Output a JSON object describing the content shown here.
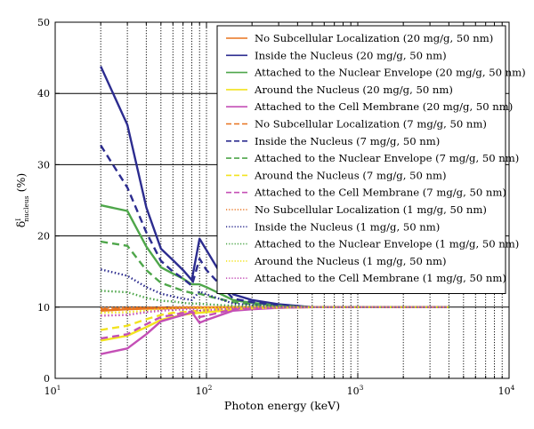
{
  "chart_data": {
    "type": "line",
    "xlabel": "Photon energy (keV)",
    "ylabel_base": "δ",
    "ylabel_sup": "I",
    "ylabel_sub": "nucleus",
    "ylabel_unit": " (%)",
    "xscale": "log",
    "xlim": [
      10,
      10000
    ],
    "ylim": [
      0,
      50
    ],
    "grid": "x-dotted-minor, y-solid-major",
    "legend_position": "top-right",
    "x_ticks": [
      {
        "base": "10",
        "exp": "1",
        "value": 10
      },
      {
        "base": "10",
        "exp": "2",
        "value": 100
      },
      {
        "base": "10",
        "exp": "3",
        "value": 1000
      },
      {
        "base": "10",
        "exp": "4",
        "value": 10000
      }
    ],
    "y_ticks": [
      0,
      10,
      20,
      30,
      40,
      50
    ],
    "x": [
      20,
      30,
      40,
      50,
      60,
      70,
      80,
      90,
      100,
      150,
      200,
      300,
      500,
      1000,
      2000,
      4000
    ],
    "series": [
      {
        "name": "No Subcellular Localization (20 mg/g, 50 nm)",
        "color": "#e8731f",
        "dash": "solid",
        "values": [
          9.5,
          9.7,
          9.8,
          9.8,
          9.85,
          9.9,
          9.9,
          9.9,
          9.95,
          10.0,
          10.0,
          10.0,
          10.0,
          10.0,
          10.0,
          10.0
        ]
      },
      {
        "name": "Inside the Nucleus (20 mg/g, 50 nm)",
        "color": "#2c2c8f",
        "dash": "solid",
        "values": [
          43.8,
          35.6,
          24.0,
          18.2,
          16.6,
          15.2,
          13.8,
          19.6,
          18.0,
          11.8,
          11.0,
          10.4,
          10.0,
          10.0,
          10.0,
          10.0
        ]
      },
      {
        "name": "Attached to the Nuclear Envelope (20 mg/g, 50 nm)",
        "color": "#4ea64a",
        "dash": "solid",
        "values": [
          24.3,
          23.5,
          18.5,
          15.6,
          14.7,
          14.0,
          13.2,
          13.2,
          12.8,
          11.0,
          10.6,
          10.2,
          10.0,
          10.0,
          10.0,
          10.0
        ]
      },
      {
        "name": "Around the Nucleus (20 mg/g, 50 nm)",
        "color": "#f2e31f",
        "dash": "solid",
        "values": [
          5.3,
          6.0,
          7.2,
          8.2,
          8.6,
          8.9,
          9.1,
          9.2,
          9.3,
          9.6,
          9.8,
          9.9,
          10.0,
          10.0,
          10.0,
          10.0
        ]
      },
      {
        "name": "Attached to the Cell Membrane (20 mg/g, 50 nm)",
        "color": "#c44fb6",
        "dash": "solid",
        "values": [
          3.4,
          4.2,
          6.2,
          8.0,
          8.5,
          8.9,
          9.3,
          7.8,
          8.2,
          9.5,
          9.7,
          9.9,
          10.0,
          10.0,
          10.0,
          10.0
        ]
      },
      {
        "name": "No Subcellular Localization (7 mg/g, 50 nm)",
        "color": "#e8731f",
        "dash": "dashed",
        "values": [
          9.7,
          9.8,
          9.85,
          9.9,
          9.9,
          9.9,
          9.95,
          9.95,
          9.95,
          10.0,
          10.0,
          10.0,
          10.0,
          10.0,
          10.0,
          10.0
        ]
      },
      {
        "name": "Inside the Nucleus (7 mg/g, 50 nm)",
        "color": "#2c2c8f",
        "dash": "dashed",
        "values": [
          32.7,
          26.8,
          20.5,
          16.5,
          15.0,
          14.0,
          13.0,
          16.8,
          15.2,
          11.2,
          10.7,
          10.3,
          10.0,
          10.0,
          10.0,
          10.0
        ]
      },
      {
        "name": "Attached to the Nuclear Envelope (7 mg/g, 50 nm)",
        "color": "#4ea64a",
        "dash": "dashed",
        "values": [
          19.2,
          18.6,
          15.2,
          13.4,
          12.8,
          12.3,
          12.0,
          11.9,
          11.6,
          10.7,
          10.4,
          10.1,
          10.0,
          10.0,
          10.0,
          10.0
        ]
      },
      {
        "name": "Around the Nucleus (7 mg/g, 50 nm)",
        "color": "#f2e31f",
        "dash": "dashed",
        "values": [
          6.8,
          7.4,
          8.3,
          8.9,
          9.2,
          9.3,
          9.4,
          9.5,
          9.6,
          9.75,
          9.85,
          9.95,
          10.0,
          10.0,
          10.0,
          10.0
        ]
      },
      {
        "name": "Attached to the Cell Membrane (7 mg/g, 50 nm)",
        "color": "#c44fb6",
        "dash": "dashed",
        "values": [
          5.6,
          6.2,
          7.6,
          8.6,
          8.9,
          9.2,
          9.4,
          8.6,
          8.8,
          9.7,
          9.8,
          9.95,
          10.0,
          10.0,
          10.0,
          10.0
        ]
      },
      {
        "name": "No Subcellular Localization (1 mg/g, 50 nm)",
        "color": "#e8731f",
        "dash": "dotted",
        "values": [
          9.9,
          9.95,
          9.95,
          9.95,
          10.0,
          10.0,
          10.0,
          10.0,
          10.0,
          10.0,
          10.0,
          10.0,
          10.0,
          10.0,
          10.0,
          10.0
        ]
      },
      {
        "name": "Inside the Nucleus (1 mg/g, 50 nm)",
        "color": "#2c2c8f",
        "dash": "dotted",
        "values": [
          15.3,
          14.4,
          12.8,
          11.9,
          11.5,
          11.2,
          11.0,
          12.2,
          11.8,
          10.5,
          10.3,
          10.1,
          10.0,
          10.0,
          10.0,
          10.0
        ]
      },
      {
        "name": "Attached to the Nuclear Envelope (1 mg/g, 50 nm)",
        "color": "#4ea64a",
        "dash": "dotted",
        "values": [
          12.3,
          12.1,
          11.3,
          10.9,
          10.8,
          10.6,
          10.5,
          10.5,
          10.4,
          10.2,
          10.1,
          10.05,
          10.0,
          10.0,
          10.0,
          10.0
        ]
      },
      {
        "name": "Around the Nucleus (1 mg/g, 50 nm)",
        "color": "#f2e31f",
        "dash": "dotted",
        "values": [
          9.2,
          9.3,
          9.5,
          9.7,
          9.75,
          9.8,
          9.85,
          9.85,
          9.9,
          9.95,
          9.97,
          10.0,
          10.0,
          10.0,
          10.0,
          10.0
        ]
      },
      {
        "name": "Attached to the Cell Membrane (1 mg/g, 50 nm)",
        "color": "#c44fb6",
        "dash": "dotted",
        "values": [
          8.8,
          8.9,
          9.3,
          9.5,
          9.6,
          9.7,
          9.75,
          9.5,
          9.55,
          9.85,
          9.9,
          9.97,
          10.0,
          10.0,
          10.0,
          10.0
        ]
      }
    ]
  }
}
